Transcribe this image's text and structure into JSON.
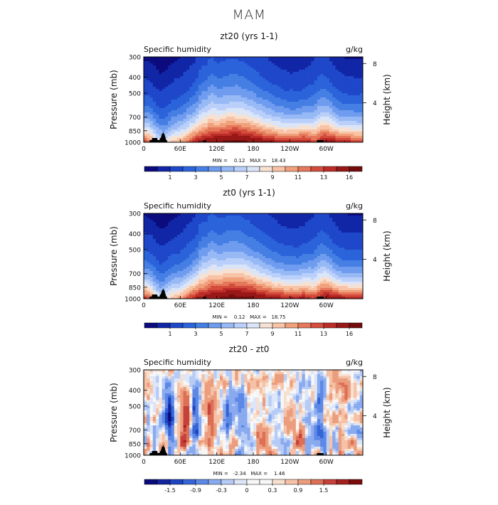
{
  "main_title": "MAM",
  "chart_data": [
    {
      "type": "heatmap",
      "title": "zt20 (yrs 1-1)",
      "variable": "Specific humidity",
      "units": "g/kg",
      "ylabel": "Pressure (mb)",
      "ylabel_right": "Height (km)",
      "x_ticks": [
        "0",
        "60E",
        "120E",
        "180",
        "120W",
        "60W"
      ],
      "x_tick_values": [
        0,
        60,
        120,
        180,
        240,
        300
      ],
      "xlim": [
        0,
        360
      ],
      "y_ticks": [
        "300",
        "400",
        "500",
        "700",
        "850",
        "1000"
      ],
      "y_tick_values": [
        300,
        400,
        500,
        700,
        850,
        1000
      ],
      "ylim": [
        1000,
        300
      ],
      "height_ticks": [
        "8",
        "4"
      ],
      "height_tick_values": [
        8,
        4
      ],
      "min_max_label": "MIN =    0.12   MAX =   18.43",
      "min": 0.12,
      "max": 18.43,
      "colorbar_labels": [
        "1",
        "3",
        "5",
        "7",
        "9",
        "11",
        "13",
        "16"
      ],
      "colorbar_colors": [
        "#0c0b7e",
        "#1126a6",
        "#1e47c9",
        "#2b63da",
        "#467fe4",
        "#6f9cee",
        "#97b9f5",
        "#bad0fa",
        "#dbe5f8",
        "#f6e1d3",
        "#f8c3a6",
        "#f0a07b",
        "#e5775a",
        "#d34c3c",
        "#bc2c28",
        "#981818",
        "#730d0d"
      ],
      "levels": [
        0.5,
        1,
        2,
        3,
        4,
        5,
        6,
        7,
        8,
        9,
        10,
        11,
        12,
        13,
        14,
        16
      ],
      "topography_peak_longitudes": [
        20,
        32,
        160,
        290
      ]
    },
    {
      "type": "heatmap",
      "title": "zt0 (yrs 1-1)",
      "variable": "Specific humidity",
      "units": "g/kg",
      "ylabel": "Pressure (mb)",
      "ylabel_right": "Height (km)",
      "x_ticks": [
        "0",
        "60E",
        "120E",
        "180",
        "120W",
        "60W"
      ],
      "x_tick_values": [
        0,
        60,
        120,
        180,
        240,
        300
      ],
      "xlim": [
        0,
        360
      ],
      "y_ticks": [
        "300",
        "400",
        "500",
        "700",
        "850",
        "1000"
      ],
      "y_tick_values": [
        300,
        400,
        500,
        700,
        850,
        1000
      ],
      "ylim": [
        1000,
        300
      ],
      "height_ticks": [
        "8",
        "4"
      ],
      "height_tick_values": [
        8,
        4
      ],
      "min_max_label": "MIN =    0.12   MAX =   18.75",
      "min": 0.12,
      "max": 18.75,
      "colorbar_labels": [
        "1",
        "3",
        "5",
        "7",
        "9",
        "11",
        "13",
        "16"
      ],
      "colorbar_colors": [
        "#0c0b7e",
        "#1126a6",
        "#1e47c9",
        "#2b63da",
        "#467fe4",
        "#6f9cee",
        "#97b9f5",
        "#bad0fa",
        "#dbe5f8",
        "#f6e1d3",
        "#f8c3a6",
        "#f0a07b",
        "#e5775a",
        "#d34c3c",
        "#bc2c28",
        "#981818",
        "#730d0d"
      ],
      "levels": [
        0.5,
        1,
        2,
        3,
        4,
        5,
        6,
        7,
        8,
        9,
        10,
        11,
        12,
        13,
        14,
        16
      ],
      "topography_peak_longitudes": [
        20,
        32,
        160,
        290
      ]
    },
    {
      "type": "heatmap",
      "title": "zt20 - zt0",
      "variable": "Specific humidity",
      "units": "g/kg",
      "ylabel": "Pressure (mb)",
      "ylabel_right": "Height (km)",
      "x_ticks": [
        "0",
        "60E",
        "120E",
        "180",
        "120W",
        "60W"
      ],
      "x_tick_values": [
        0,
        60,
        120,
        180,
        240,
        300
      ],
      "xlim": [
        0,
        360
      ],
      "y_ticks": [
        "300",
        "400",
        "500",
        "700",
        "850",
        "1000"
      ],
      "y_tick_values": [
        300,
        400,
        500,
        700,
        850,
        1000
      ],
      "ylim": [
        1000,
        300
      ],
      "height_ticks": [
        "8",
        "4"
      ],
      "height_tick_values": [
        8,
        4
      ],
      "min_max_label": "MIN =   -2.34   MAX =    1.46",
      "min": -2.34,
      "max": 1.46,
      "colorbar_labels": [
        "-1.5",
        "-0.9",
        "-0.3",
        "0",
        "0.3",
        "0.9",
        "1.5"
      ],
      "colorbar_colors": [
        "#0a0a7a",
        "#14249e",
        "#1f44c0",
        "#3565d6",
        "#5d88e6",
        "#8aaaf0",
        "#b6ccf6",
        "#dce6f8",
        "#f7f7f7",
        "#f7f7f7",
        "#f8e0d0",
        "#f5c2a7",
        "#ec9d7e",
        "#dc6f55",
        "#c5413a",
        "#a4201f",
        "#7a0c0c"
      ],
      "levels": [
        -2,
        -1.5,
        -1.2,
        -0.9,
        -0.6,
        -0.3,
        -0.15,
        -0.05,
        0,
        0.05,
        0.15,
        0.3,
        0.6,
        0.9,
        1.2,
        1.5
      ],
      "topography_peak_longitudes": [
        20,
        32,
        290
      ]
    }
  ]
}
